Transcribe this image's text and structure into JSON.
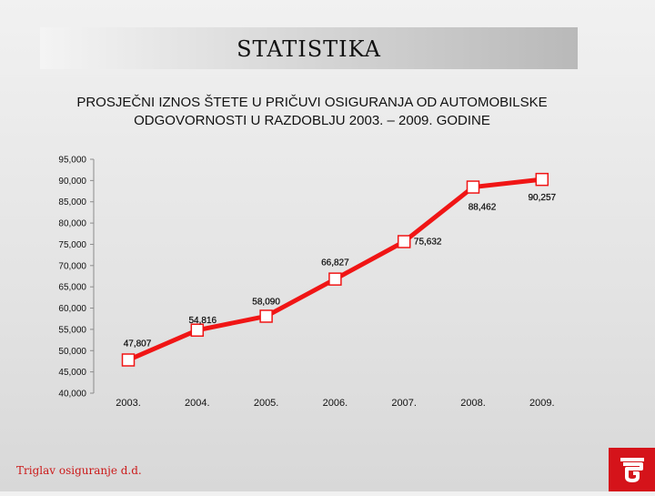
{
  "slide": {
    "heading": "STATISTIKA",
    "footer": "Triglav osiguranje d.d."
  },
  "colors": {
    "line": "#f01515",
    "marker_fill": "#ffffff",
    "marker_stroke": "#f01515",
    "brand_red": "#d5131a"
  },
  "chart_data": {
    "type": "line",
    "title": "PROSJEČNI IZNOS ŠTETE U PRIČUVI OSIGURANJA OD AUTOMOBILSKE ODGOVORNOSTI U RAZDOBLJU 2003. – 2009. GODINE",
    "title_lines": [
      "PROSJEČNI IZNOS ŠTETE U PRIČUVI OSIGURANJA OD AUTOMOBILSKE",
      "ODGOVORNOSTI U RAZDOBLJU 2003. – 2009. GODINE"
    ],
    "categories": [
      "2003.",
      "2004.",
      "2005.",
      "2006.",
      "2007.",
      "2008.",
      "2009."
    ],
    "series": [
      {
        "values": [
          47807,
          54816,
          58090,
          66827,
          75632,
          88462,
          90257
        ],
        "labels": [
          "47,807",
          "54,816",
          "58,090",
          "66,827",
          "75,632",
          "88,462",
          "90,257"
        ]
      }
    ],
    "ylim": [
      40000,
      95000
    ],
    "yticks": [
      40000,
      45000,
      50000,
      55000,
      60000,
      65000,
      70000,
      75000,
      80000,
      85000,
      90000,
      95000
    ],
    "ytick_labels": [
      "40,000",
      "45,000",
      "50,000",
      "55,000",
      "60,000",
      "65,000",
      "70,000",
      "75,000",
      "80,000",
      "85,000",
      "90,000",
      "95,000"
    ],
    "xlabel": "",
    "ylabel": "",
    "grid": false,
    "legend": "none"
  }
}
